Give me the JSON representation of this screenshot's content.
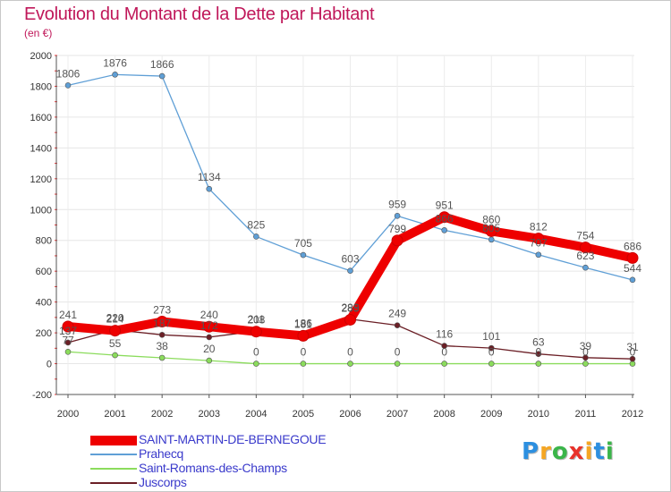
{
  "chart_data": {
    "type": "line",
    "title": "Evolution du Montant de la Dette par Habitant",
    "subtitle": "(en €)",
    "x": [
      "2000",
      "2001",
      "2002",
      "2003",
      "2004",
      "2005",
      "2006",
      "2007",
      "2008",
      "2009",
      "2010",
      "2011",
      "2012"
    ],
    "ylim": [
      -200,
      2000
    ],
    "yticks": [
      -200,
      0,
      200,
      400,
      600,
      800,
      1000,
      1200,
      1400,
      1600,
      1800,
      2000
    ],
    "grid": true,
    "legend_placement": "bottom",
    "series": [
      {
        "name": "SAINT-MARTIN-DE-BERNEGOUE",
        "color": "#ee0000",
        "values": [
          241,
          214,
          273,
          240,
          208,
          181,
          285,
          799,
          951,
          860,
          812,
          754,
          686
        ]
      },
      {
        "name": "Prahecq",
        "color": "#5f9fd6",
        "values": [
          1806,
          1876,
          1866,
          1134,
          825,
          705,
          603,
          959,
          866,
          805,
          707,
          623,
          544
        ]
      },
      {
        "name": "Saint-Romans-des-Champs",
        "color": "#8bdc5c",
        "values": [
          77,
          55,
          38,
          20,
          0,
          0,
          0,
          0,
          0,
          0,
          0,
          0,
          0
        ]
      },
      {
        "name": "Juscorps",
        "color": "#6b1f26",
        "values": [
          137,
          220,
          187,
          172,
          211,
          186,
          289,
          249,
          116,
          101,
          63,
          39,
          31
        ]
      }
    ]
  },
  "logo": {
    "letters": [
      "P",
      "r",
      "o",
      "x",
      "i",
      "t",
      "i"
    ],
    "colors": [
      "#2c8fe0",
      "#f5a623",
      "#3bb54a",
      "#e8322a",
      "#f5a623",
      "#2c8fe0",
      "#3bb54a"
    ]
  }
}
